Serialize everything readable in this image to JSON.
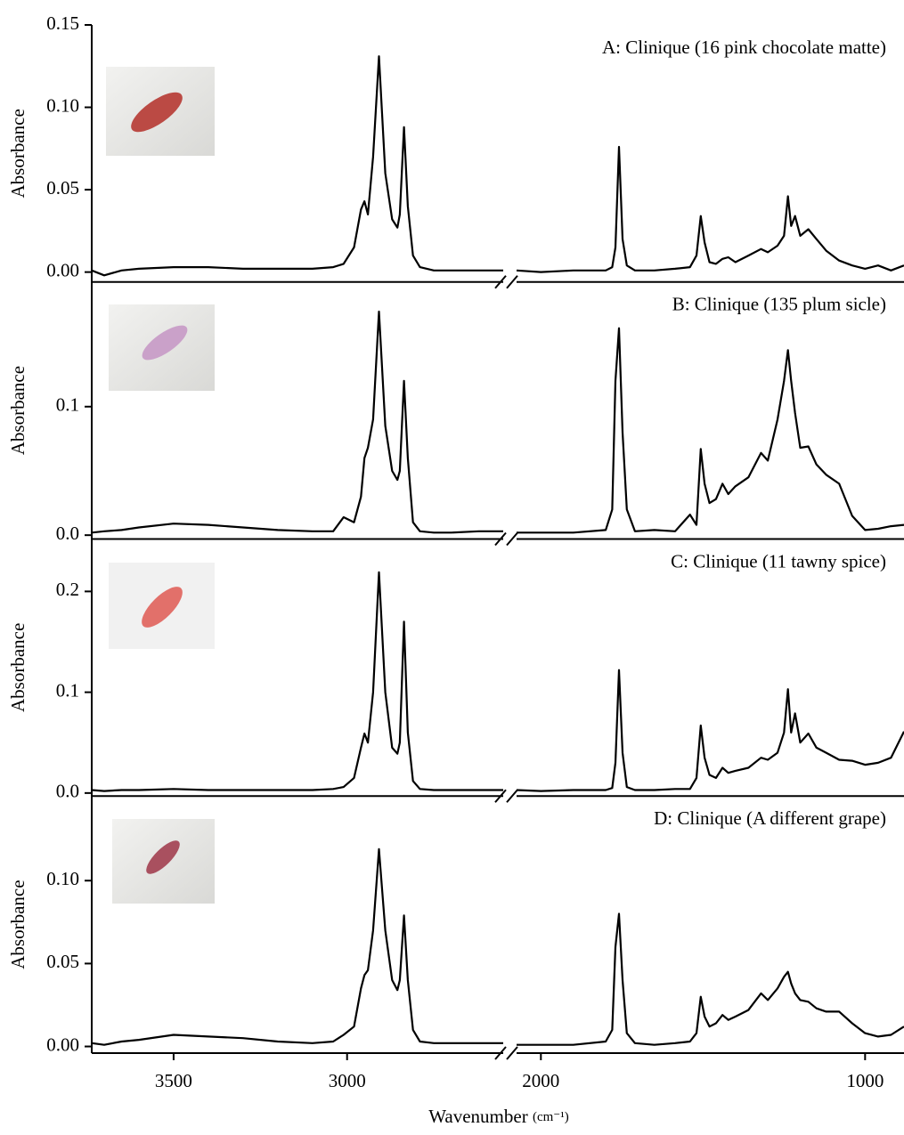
{
  "chart_data": [
    {
      "type": "line",
      "title": "A: Clinique (16 pink chocolate matte)",
      "ylabel": "Absorbance",
      "color": "#000000",
      "ylim": [
        -0.006,
        0.15
      ],
      "yticks": [
        {
          "value": 0,
          "label": "0.00"
        },
        {
          "value": 0.05,
          "label": "0.05"
        },
        {
          "value": 0.1,
          "label": "0.10"
        },
        {
          "value": 0.15,
          "label": "0.15"
        }
      ],
      "x": [
        3736,
        3700,
        3650,
        3600,
        3500,
        3400,
        3300,
        3200,
        3100,
        3040,
        3010,
        2980,
        2960,
        2950,
        2940,
        2925,
        2908,
        2890,
        2870,
        2855,
        2848,
        2836,
        2825,
        2810,
        2790,
        2750,
        2700,
        2620,
        2550,
        2075,
        2000,
        1900,
        1800,
        1780,
        1770,
        1759,
        1748,
        1735,
        1710,
        1650,
        1586,
        1540,
        1520,
        1507,
        1495,
        1480,
        1460,
        1440,
        1422,
        1400,
        1360,
        1321,
        1300,
        1270,
        1250,
        1238,
        1228,
        1216,
        1200,
        1175,
        1150,
        1120,
        1080,
        1040,
        1000,
        960,
        920,
        880
      ],
      "values": [
        0.001,
        -0.002,
        0.001,
        0.002,
        0.003,
        0.003,
        0.002,
        0.002,
        0.002,
        0.003,
        0.005,
        0.015,
        0.038,
        0.043,
        0.035,
        0.07,
        0.131,
        0.06,
        0.032,
        0.027,
        0.035,
        0.088,
        0.04,
        0.01,
        0.003,
        0.001,
        0.001,
        0.001,
        0.001,
        0.001,
        0.0,
        0.001,
        0.001,
        0.003,
        0.015,
        0.076,
        0.02,
        0.004,
        0.001,
        0.001,
        0.002,
        0.003,
        0.01,
        0.034,
        0.018,
        0.006,
        0.005,
        0.008,
        0.009,
        0.006,
        0.01,
        0.014,
        0.012,
        0.016,
        0.022,
        0.046,
        0.028,
        0.034,
        0.022,
        0.026,
        0.02,
        0.013,
        0.007,
        0.004,
        0.002,
        0.004,
        0.001,
        0.004
      ]
    },
    {
      "type": "line",
      "title": "B: Clinique (135 plum sicle)",
      "ylabel": "Absorbance",
      "color": "#000000",
      "ylim": [
        -0.003,
        0.197
      ],
      "yticks": [
        {
          "value": 0,
          "label": "0.0"
        },
        0.1
      ],
      "x": [
        3736,
        3700,
        3650,
        3600,
        3500,
        3400,
        3300,
        3200,
        3100,
        3040,
        3010,
        2980,
        2960,
        2950,
        2940,
        2925,
        2908,
        2890,
        2870,
        2855,
        2848,
        2836,
        2825,
        2810,
        2790,
        2750,
        2700,
        2620,
        2550,
        2075,
        2000,
        1900,
        1800,
        1780,
        1770,
        1759,
        1748,
        1735,
        1710,
        1650,
        1586,
        1540,
        1520,
        1507,
        1495,
        1480,
        1460,
        1440,
        1422,
        1400,
        1360,
        1321,
        1300,
        1270,
        1250,
        1238,
        1228,
        1216,
        1200,
        1175,
        1150,
        1120,
        1080,
        1040,
        1000,
        960,
        920,
        880
      ],
      "values": [
        0.002,
        0.003,
        0.004,
        0.006,
        0.009,
        0.008,
        0.006,
        0.004,
        0.003,
        0.003,
        0.014,
        0.01,
        0.03,
        0.06,
        0.068,
        0.09,
        0.174,
        0.085,
        0.05,
        0.043,
        0.05,
        0.12,
        0.06,
        0.01,
        0.003,
        0.002,
        0.002,
        0.003,
        0.003,
        0.002,
        0.002,
        0.002,
        0.004,
        0.02,
        0.12,
        0.161,
        0.08,
        0.02,
        0.003,
        0.004,
        0.003,
        0.016,
        0.008,
        0.067,
        0.04,
        0.025,
        0.028,
        0.04,
        0.032,
        0.038,
        0.045,
        0.064,
        0.058,
        0.09,
        0.12,
        0.144,
        0.12,
        0.095,
        0.068,
        0.069,
        0.055,
        0.047,
        0.04,
        0.015,
        0.004,
        0.005,
        0.007,
        0.008
      ]
    },
    {
      "type": "line",
      "title": "C: Clinique (11 tawny spice)",
      "ylabel": "Absorbance",
      "color": "#000000",
      "ylim": [
        -0.003,
        0.252
      ],
      "yticks": [
        {
          "value": 0,
          "label": "0.0"
        },
        0.1,
        0.2
      ],
      "x": [
        3736,
        3700,
        3650,
        3600,
        3500,
        3400,
        3300,
        3200,
        3100,
        3040,
        3010,
        2980,
        2960,
        2950,
        2940,
        2925,
        2908,
        2890,
        2870,
        2855,
        2848,
        2836,
        2825,
        2810,
        2790,
        2750,
        2700,
        2620,
        2550,
        2075,
        2000,
        1900,
        1800,
        1780,
        1770,
        1759,
        1748,
        1735,
        1710,
        1650,
        1586,
        1540,
        1520,
        1507,
        1495,
        1480,
        1460,
        1440,
        1422,
        1400,
        1360,
        1321,
        1300,
        1270,
        1250,
        1238,
        1228,
        1216,
        1200,
        1175,
        1150,
        1120,
        1080,
        1040,
        1000,
        960,
        920,
        880
      ],
      "values": [
        0.003,
        0.002,
        0.003,
        0.003,
        0.004,
        0.003,
        0.003,
        0.003,
        0.003,
        0.004,
        0.006,
        0.015,
        0.045,
        0.059,
        0.05,
        0.1,
        0.219,
        0.1,
        0.045,
        0.039,
        0.05,
        0.17,
        0.06,
        0.012,
        0.004,
        0.003,
        0.003,
        0.003,
        0.003,
        0.003,
        0.002,
        0.003,
        0.003,
        0.005,
        0.03,
        0.122,
        0.04,
        0.006,
        0.003,
        0.003,
        0.004,
        0.004,
        0.015,
        0.067,
        0.035,
        0.018,
        0.015,
        0.025,
        0.02,
        0.022,
        0.025,
        0.035,
        0.033,
        0.04,
        0.06,
        0.103,
        0.06,
        0.079,
        0.05,
        0.059,
        0.045,
        0.04,
        0.033,
        0.032,
        0.028,
        0.03,
        0.035,
        0.061
      ]
    },
    {
      "type": "line",
      "title": "D: Clinique (A different grape)",
      "ylabel": "Absorbance",
      "color": "#000000",
      "ylim": [
        -0.004,
        0.151
      ],
      "yticks": [
        {
          "value": 0,
          "label": "0.00"
        },
        {
          "value": 0.05,
          "label": "0.05"
        },
        {
          "value": 0.1,
          "label": "0.10"
        }
      ],
      "xlabel": "Wavenumber",
      "xunit": "(cm⁻¹)",
      "x_segments": [
        {
          "xlim": [
            3736,
            2550
          ]
        },
        {
          "xlim": [
            2075,
            880
          ]
        }
      ],
      "xticks": [
        3500,
        3000,
        2000,
        1000
      ],
      "x": [
        3736,
        3700,
        3650,
        3600,
        3500,
        3400,
        3300,
        3200,
        3100,
        3040,
        3010,
        2980,
        2960,
        2950,
        2940,
        2925,
        2908,
        2890,
        2870,
        2855,
        2848,
        2836,
        2825,
        2810,
        2790,
        2750,
        2700,
        2620,
        2550,
        2075,
        2000,
        1900,
        1800,
        1780,
        1770,
        1759,
        1748,
        1735,
        1710,
        1650,
        1586,
        1540,
        1520,
        1507,
        1495,
        1480,
        1460,
        1440,
        1422,
        1400,
        1360,
        1321,
        1300,
        1270,
        1250,
        1238,
        1228,
        1216,
        1200,
        1175,
        1150,
        1120,
        1080,
        1040,
        1000,
        960,
        920,
        880
      ],
      "values": [
        0.002,
        0.001,
        0.003,
        0.004,
        0.007,
        0.006,
        0.005,
        0.003,
        0.002,
        0.003,
        0.007,
        0.012,
        0.035,
        0.043,
        0.046,
        0.07,
        0.119,
        0.07,
        0.04,
        0.034,
        0.04,
        0.079,
        0.04,
        0.01,
        0.003,
        0.002,
        0.002,
        0.002,
        0.002,
        0.001,
        0.001,
        0.001,
        0.003,
        0.01,
        0.06,
        0.08,
        0.04,
        0.008,
        0.002,
        0.001,
        0.002,
        0.003,
        0.008,
        0.03,
        0.018,
        0.012,
        0.014,
        0.019,
        0.016,
        0.018,
        0.022,
        0.032,
        0.028,
        0.035,
        0.042,
        0.045,
        0.038,
        0.032,
        0.028,
        0.027,
        0.023,
        0.021,
        0.021,
        0.014,
        0.008,
        0.006,
        0.007,
        0.012
      ]
    }
  ]
}
